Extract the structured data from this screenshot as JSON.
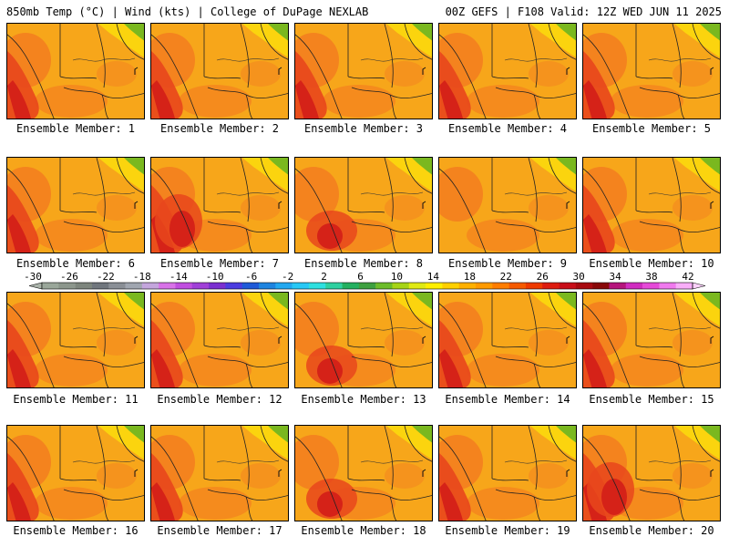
{
  "header": {
    "left": "850mb Temp (°C) | Wind (kts) | College of DuPage NEXLAB",
    "right": "00Z GEFS | F108 Valid: 12Z WED JUN 11 2025"
  },
  "panels": [
    {
      "label": "Ensemble Member: 1",
      "hot": "left",
      "cool": "ne"
    },
    {
      "label": "Ensemble Member: 2",
      "hot": "left",
      "cool": "ne"
    },
    {
      "label": "Ensemble Member: 3",
      "hot": "left",
      "cool": "ne"
    },
    {
      "label": "Ensemble Member: 4",
      "hot": "left",
      "cool": "ne"
    },
    {
      "label": "Ensemble Member: 5",
      "hot": "left",
      "cool": "ne"
    },
    {
      "label": "Ensemble Member: 6",
      "hot": "left",
      "cool": "ne"
    },
    {
      "label": "Ensemble Member: 7",
      "hot": "strong",
      "cool": "ne"
    },
    {
      "label": "Ensemble Member: 8",
      "hot": "center",
      "cool": "ne"
    },
    {
      "label": "Ensemble Member: 9",
      "hot": "none",
      "cool": "ne"
    },
    {
      "label": "Ensemble Member: 10",
      "hot": "left",
      "cool": "ne"
    },
    {
      "label": "Ensemble Member: 11",
      "hot": "left",
      "cool": "ne"
    },
    {
      "label": "Ensemble Member: 12",
      "hot": "left",
      "cool": "ne"
    },
    {
      "label": "Ensemble Member: 13",
      "hot": "center",
      "cool": "ne"
    },
    {
      "label": "Ensemble Member: 14",
      "hot": "left",
      "cool": "ne"
    },
    {
      "label": "Ensemble Member: 15",
      "hot": "left",
      "cool": "ne"
    },
    {
      "label": "Ensemble Member: 16",
      "hot": "left",
      "cool": "ne"
    },
    {
      "label": "Ensemble Member: 17",
      "hot": "left",
      "cool": "ne"
    },
    {
      "label": "Ensemble Member: 18",
      "hot": "center",
      "cool": "ne"
    },
    {
      "label": "Ensemble Member: 19",
      "hot": "left",
      "cool": "ne"
    },
    {
      "label": "Ensemble Member: 20",
      "hot": "strong",
      "cool": "ne"
    }
  ],
  "colorbar": {
    "ticks": [
      "-30",
      "-26",
      "-22",
      "-18",
      "-14",
      "-10",
      "-6",
      "-2",
      "2",
      "6",
      "10",
      "14",
      "18",
      "22",
      "26",
      "30",
      "34",
      "38",
      "42"
    ],
    "colors": [
      "#9aa79a",
      "#8c968c",
      "#7d857d",
      "#70767d",
      "#8a8f96",
      "#a0a6b0",
      "#c4a6dd",
      "#d872e8",
      "#c04ee0",
      "#a040d8",
      "#7a2fd0",
      "#4b3ce0",
      "#1f5ad8",
      "#1e84e0",
      "#22a8f0",
      "#27c8f5",
      "#2ee0e0",
      "#2ed0a0",
      "#23b060",
      "#3ea040",
      "#6cbc2a",
      "#a6d416",
      "#e0ea14",
      "#ffef00",
      "#ffd000",
      "#ffb000",
      "#ff9a00",
      "#ff7d00",
      "#f55a00",
      "#ee3a00",
      "#dd1c10",
      "#c80e18",
      "#a80a10",
      "#880808",
      "#b5157c",
      "#d02cc0",
      "#e54ad8",
      "#f07aee",
      "#f8aef8"
    ]
  },
  "field_colors": {
    "base": "#f7a61a",
    "warm": "#f3801f",
    "hot": "#e8461c",
    "hotter": "#d52218",
    "cool": "#fbd40e",
    "cold": "#7ab81f"
  }
}
